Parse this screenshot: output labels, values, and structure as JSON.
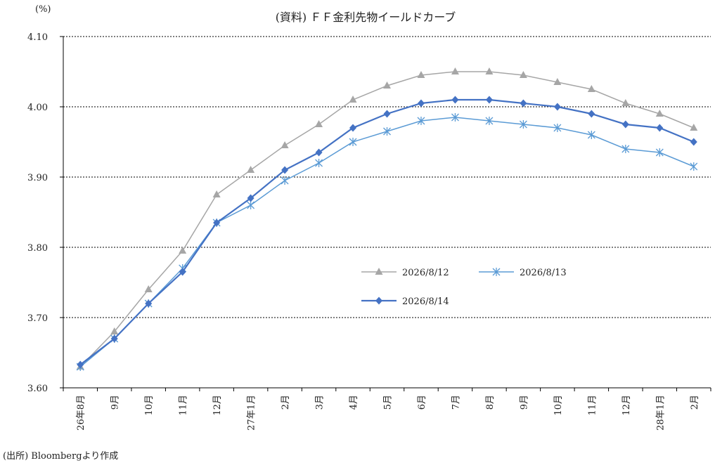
{
  "chart_data": {
    "type": "line",
    "title": "(資料) ＦＦ金利先物イールドカーブ",
    "unit_label": "(%)",
    "source": "(出所) Bloombergより作成",
    "ylim": [
      3.6,
      4.1
    ],
    "yticks": [
      "3.60",
      "3.70",
      "3.80",
      "3.90",
      "4.00",
      "4.10"
    ],
    "grid": true,
    "legend_position": "center-right",
    "categories": [
      "26年8月",
      "9月",
      "10月",
      "11月",
      "12月",
      "27年1月",
      "2月",
      "3月",
      "4月",
      "5月",
      "6月",
      "7月",
      "8月",
      "9月",
      "10月",
      "11月",
      "12月",
      "28年1月",
      "2月"
    ],
    "series": [
      {
        "name": "2026/8/12",
        "color": "#a6a6a6",
        "marker": "triangle",
        "values": [
          3.63,
          3.68,
          3.74,
          3.795,
          3.875,
          3.91,
          3.945,
          3.975,
          4.01,
          4.03,
          4.045,
          4.05,
          4.05,
          4.045,
          4.035,
          4.025,
          4.005,
          3.99,
          3.97
        ]
      },
      {
        "name": "2026/8/13",
        "color": "#5b9bd5",
        "marker": "asterisk",
        "values": [
          3.63,
          3.67,
          3.72,
          3.77,
          3.835,
          3.86,
          3.895,
          3.92,
          3.95,
          3.965,
          3.98,
          3.985,
          3.98,
          3.975,
          3.97,
          3.96,
          3.94,
          3.935,
          3.915
        ]
      },
      {
        "name": "2026/8/14",
        "color": "#4472c4",
        "marker": "diamond",
        "values": [
          3.633,
          3.67,
          3.72,
          3.765,
          3.835,
          3.87,
          3.91,
          3.935,
          3.97,
          3.99,
          4.005,
          4.01,
          4.01,
          4.005,
          4.0,
          3.99,
          3.975,
          3.97,
          3.95
        ]
      }
    ]
  }
}
